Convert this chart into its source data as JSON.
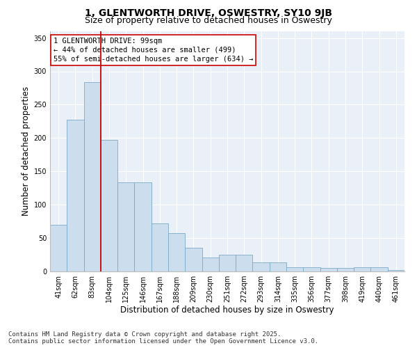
{
  "title": "1, GLENTWORTH DRIVE, OSWESTRY, SY10 9JB",
  "subtitle": "Size of property relative to detached houses in Oswestry",
  "xlabel": "Distribution of detached houses by size in Oswestry",
  "ylabel": "Number of detached properties",
  "categories": [
    "41sqm",
    "62sqm",
    "83sqm",
    "104sqm",
    "125sqm",
    "146sqm",
    "167sqm",
    "188sqm",
    "209sqm",
    "230sqm",
    "251sqm",
    "272sqm",
    "293sqm",
    "314sqm",
    "335sqm",
    "356sqm",
    "377sqm",
    "398sqm",
    "419sqm",
    "440sqm",
    "461sqm"
  ],
  "values": [
    70,
    228,
    284,
    197,
    134,
    134,
    72,
    57,
    36,
    21,
    25,
    25,
    14,
    14,
    6,
    6,
    5,
    5,
    6,
    6,
    2
  ],
  "bar_color": "#ccdded",
  "bar_edge_color": "#7aaac8",
  "vline_x": 2.5,
  "vline_color": "#cc0000",
  "annotation_line1": "1 GLENTWORTH DRIVE: 99sqm",
  "annotation_line2": "← 44% of detached houses are smaller (499)",
  "annotation_line3": "55% of semi-detached houses are larger (634) →",
  "annotation_box_color": "#ffffff",
  "annotation_box_edge": "#cc0000",
  "ylim": [
    0,
    360
  ],
  "yticks": [
    0,
    50,
    100,
    150,
    200,
    250,
    300,
    350
  ],
  "background_color": "#eaf0f8",
  "footer": "Contains HM Land Registry data © Crown copyright and database right 2025.\nContains public sector information licensed under the Open Government Licence v3.0.",
  "title_fontsize": 10,
  "subtitle_fontsize": 9,
  "xlabel_fontsize": 8.5,
  "ylabel_fontsize": 8.5,
  "tick_fontsize": 7,
  "annotation_fontsize": 7.5,
  "footer_fontsize": 6.5
}
